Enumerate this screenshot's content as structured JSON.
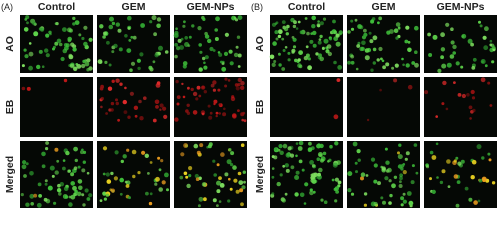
{
  "panels": [
    {
      "label": "(A)",
      "columns": [
        "Control",
        "GEM",
        "GEM-NPs"
      ],
      "rows": [
        "AO",
        "EB",
        "Merged"
      ]
    },
    {
      "label": "(B)",
      "columns": [
        "Control",
        "GEM",
        "GEM-NPs"
      ],
      "rows": [
        "AO",
        "EB",
        "Merged"
      ]
    }
  ]
}
